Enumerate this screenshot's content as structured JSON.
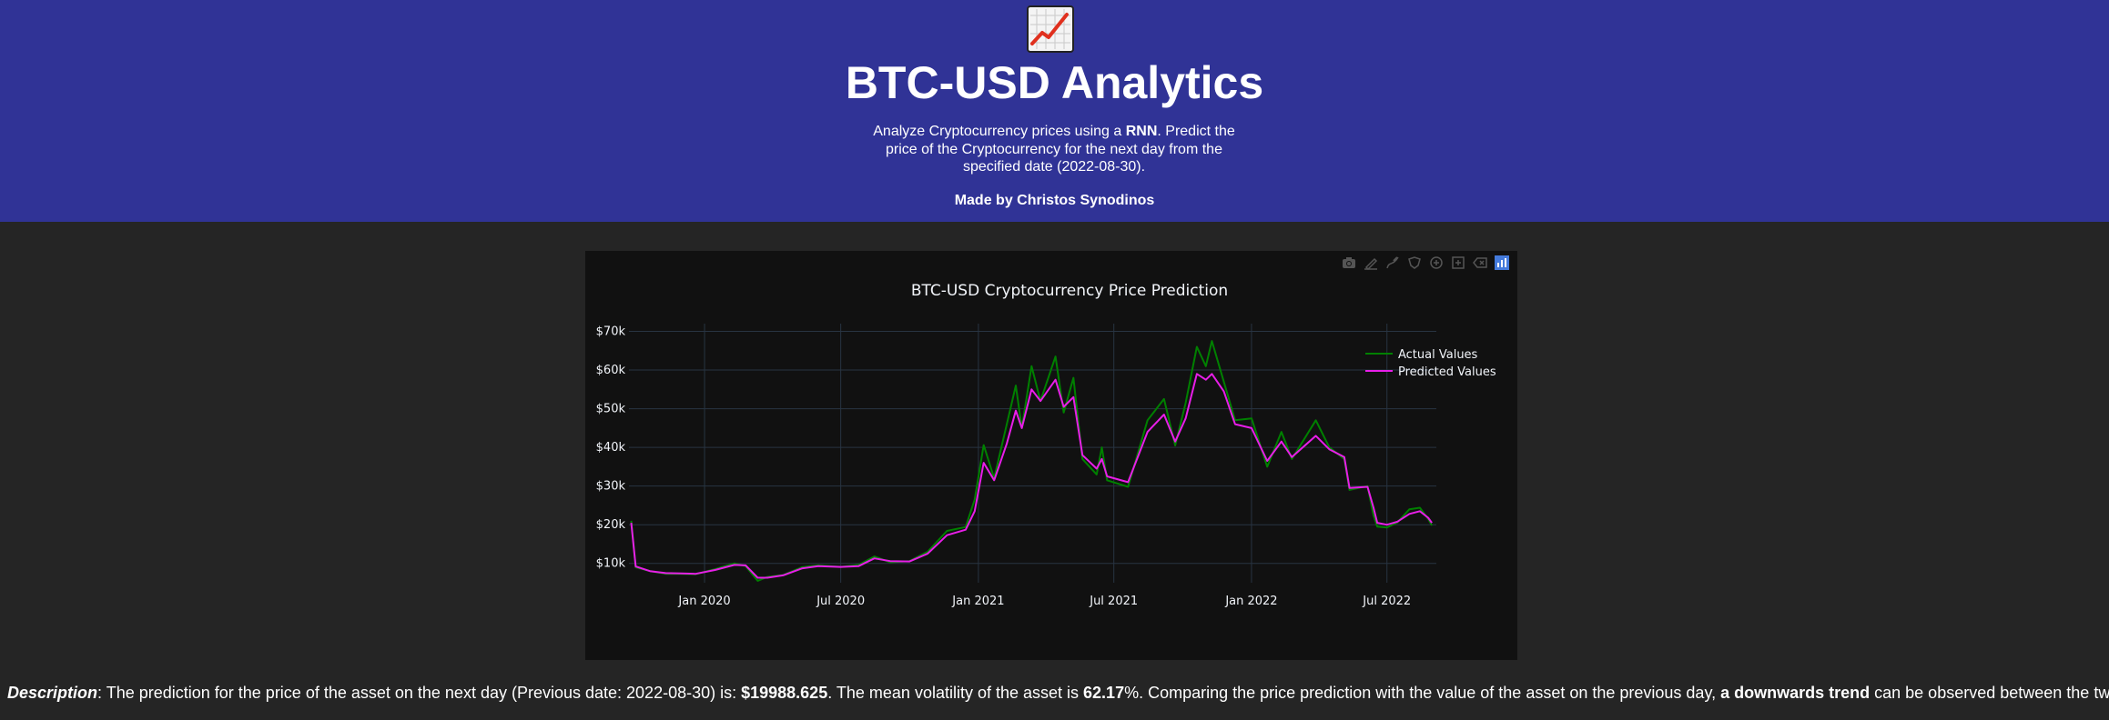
{
  "header": {
    "logo_icon": "chart-increasing-icon",
    "title": "BTC-USD Analytics",
    "subtitle_part1": "Analyze Cryptocurrency prices using a ",
    "subtitle_bold": "RNN",
    "subtitle_part2": ". Predict the price of the Cryptocurrency for the next day from the specified date (2022-08-30).",
    "author": "Made by Christos Synodinos"
  },
  "modebar": [
    "camera-icon",
    "draw-line-icon",
    "draw-open-path-icon",
    "draw-closed-path-icon",
    "draw-circle-icon",
    "draw-rectangle-icon",
    "erase-shape-icon",
    "plotly-logo-icon"
  ],
  "chart_data": {
    "type": "line",
    "title": "BTC-USD Cryptocurrency Price Prediction",
    "x_range": [
      "2019-09-22",
      "2022-09-05"
    ],
    "ylim": [
      5000,
      72000
    ],
    "y_ticks": [
      10000,
      20000,
      30000,
      40000,
      50000,
      60000,
      70000
    ],
    "y_tick_labels": [
      "$10k",
      "$20k",
      "$30k",
      "$40k",
      "$50k",
      "$60k",
      "$70k"
    ],
    "x_ticks": [
      "2020-01-01",
      "2020-07-01",
      "2021-01-01",
      "2021-07-01",
      "2022-01-01",
      "2022-07-01"
    ],
    "x_tick_labels": [
      "Jan 2020",
      "Jul 2020",
      "Jan 2021",
      "Jul 2021",
      "Jan 2022",
      "Jul 2022"
    ],
    "grid": true,
    "legend_position": "top-right",
    "series": [
      {
        "name": "Actual Values",
        "color": "#008000",
        "points": [
          [
            "2019-09-25",
            21000
          ],
          [
            "2019-10-01",
            9000
          ],
          [
            "2019-10-20",
            8000
          ],
          [
            "2019-11-10",
            7300
          ],
          [
            "2019-12-01",
            7300
          ],
          [
            "2019-12-20",
            7200
          ],
          [
            "2020-01-15",
            8500
          ],
          [
            "2020-02-10",
            10000
          ],
          [
            "2020-02-25",
            9300
          ],
          [
            "2020-03-12",
            5500
          ],
          [
            "2020-03-25",
            6500
          ],
          [
            "2020-04-15",
            7000
          ],
          [
            "2020-05-10",
            9000
          ],
          [
            "2020-06-01",
            9500
          ],
          [
            "2020-07-01",
            9100
          ],
          [
            "2020-07-25",
            9600
          ],
          [
            "2020-08-15",
            11800
          ],
          [
            "2020-09-05",
            10300
          ],
          [
            "2020-10-01",
            10600
          ],
          [
            "2020-10-25",
            13000
          ],
          [
            "2020-11-20",
            18400
          ],
          [
            "2020-12-15",
            19400
          ],
          [
            "2020-12-27",
            26500
          ],
          [
            "2021-01-08",
            40600
          ],
          [
            "2021-01-22",
            32000
          ],
          [
            "2021-02-08",
            46000
          ],
          [
            "2021-02-20",
            56000
          ],
          [
            "2021-02-28",
            45000
          ],
          [
            "2021-03-13",
            61000
          ],
          [
            "2021-03-25",
            52000
          ],
          [
            "2021-04-14",
            63500
          ],
          [
            "2021-04-25",
            49000
          ],
          [
            "2021-05-08",
            58000
          ],
          [
            "2021-05-20",
            37000
          ],
          [
            "2021-06-08",
            33000
          ],
          [
            "2021-06-15",
            40000
          ],
          [
            "2021-06-22",
            31500
          ],
          [
            "2021-07-20",
            29800
          ],
          [
            "2021-08-15",
            47000
          ],
          [
            "2021-09-06",
            52500
          ],
          [
            "2021-09-21",
            40500
          ],
          [
            "2021-10-05",
            51500
          ],
          [
            "2021-10-20",
            66000
          ],
          [
            "2021-11-01",
            61000
          ],
          [
            "2021-11-09",
            67500
          ],
          [
            "2021-11-25",
            57000
          ],
          [
            "2021-12-10",
            47000
          ],
          [
            "2022-01-01",
            47500
          ],
          [
            "2022-01-22",
            35000
          ],
          [
            "2022-02-10",
            44000
          ],
          [
            "2022-02-24",
            37000
          ],
          [
            "2022-03-28",
            47000
          ],
          [
            "2022-04-15",
            40000
          ],
          [
            "2022-05-05",
            37000
          ],
          [
            "2022-05-12",
            29000
          ],
          [
            "2022-06-05",
            30000
          ],
          [
            "2022-06-13",
            22500
          ],
          [
            "2022-06-18",
            19500
          ],
          [
            "2022-07-01",
            19300
          ],
          [
            "2022-07-15",
            20600
          ],
          [
            "2022-07-31",
            24000
          ],
          [
            "2022-08-14",
            24400
          ],
          [
            "2022-08-25",
            21500
          ],
          [
            "2022-08-30",
            19800
          ]
        ]
      },
      {
        "name": "Predicted Values",
        "color": "#e81ee8",
        "points": [
          [
            "2019-09-25",
            20500
          ],
          [
            "2019-10-01",
            9200
          ],
          [
            "2019-10-20",
            8000
          ],
          [
            "2019-11-10",
            7500
          ],
          [
            "2019-12-01",
            7400
          ],
          [
            "2019-12-20",
            7300
          ],
          [
            "2020-01-15",
            8300
          ],
          [
            "2020-02-10",
            9600
          ],
          [
            "2020-02-25",
            9500
          ],
          [
            "2020-03-12",
            6300
          ],
          [
            "2020-03-25",
            6300
          ],
          [
            "2020-04-15",
            6900
          ],
          [
            "2020-05-10",
            8700
          ],
          [
            "2020-06-01",
            9300
          ],
          [
            "2020-07-01",
            9100
          ],
          [
            "2020-07-25",
            9300
          ],
          [
            "2020-08-15",
            11300
          ],
          [
            "2020-09-05",
            10600
          ],
          [
            "2020-10-01",
            10500
          ],
          [
            "2020-10-25",
            12500
          ],
          [
            "2020-11-20",
            17300
          ],
          [
            "2020-12-15",
            18700
          ],
          [
            "2020-12-27",
            23500
          ],
          [
            "2021-01-08",
            36000
          ],
          [
            "2021-01-22",
            31500
          ],
          [
            "2021-02-08",
            41000
          ],
          [
            "2021-02-20",
            49500
          ],
          [
            "2021-02-28",
            45000
          ],
          [
            "2021-03-13",
            55000
          ],
          [
            "2021-03-25",
            52000
          ],
          [
            "2021-04-14",
            57500
          ],
          [
            "2021-04-25",
            50500
          ],
          [
            "2021-05-08",
            53000
          ],
          [
            "2021-05-20",
            38000
          ],
          [
            "2021-06-08",
            34500
          ],
          [
            "2021-06-15",
            37000
          ],
          [
            "2021-06-22",
            32500
          ],
          [
            "2021-07-20",
            31000
          ],
          [
            "2021-08-15",
            44000
          ],
          [
            "2021-09-06",
            48500
          ],
          [
            "2021-09-21",
            41500
          ],
          [
            "2021-10-05",
            47500
          ],
          [
            "2021-10-20",
            59000
          ],
          [
            "2021-11-01",
            57500
          ],
          [
            "2021-11-09",
            59000
          ],
          [
            "2021-11-25",
            54500
          ],
          [
            "2021-12-10",
            46000
          ],
          [
            "2022-01-01",
            45000
          ],
          [
            "2022-01-22",
            36500
          ],
          [
            "2022-02-10",
            41500
          ],
          [
            "2022-02-24",
            37500
          ],
          [
            "2022-03-28",
            43000
          ],
          [
            "2022-04-15",
            39500
          ],
          [
            "2022-05-05",
            37500
          ],
          [
            "2022-05-12",
            29500
          ],
          [
            "2022-06-05",
            29800
          ],
          [
            "2022-06-13",
            24500
          ],
          [
            "2022-06-18",
            20500
          ],
          [
            "2022-07-01",
            20000
          ],
          [
            "2022-07-15",
            20800
          ],
          [
            "2022-07-31",
            22800
          ],
          [
            "2022-08-14",
            23500
          ],
          [
            "2022-08-25",
            21800
          ],
          [
            "2022-08-30",
            20500
          ]
        ]
      }
    ]
  },
  "description": {
    "label": "Description",
    "text1": ": The prediction for the price of the asset on the next day (Previous date: 2022-08-30) is: ",
    "prediction": "$19988.625",
    "text2": ". The mean volatility of the asset is ",
    "volatility": "62.17",
    "text3": "%. Comparing the price prediction with the value of the asset on the previous day, ",
    "trend": "a downwards trend",
    "text4": " can be observed between the two days."
  }
}
